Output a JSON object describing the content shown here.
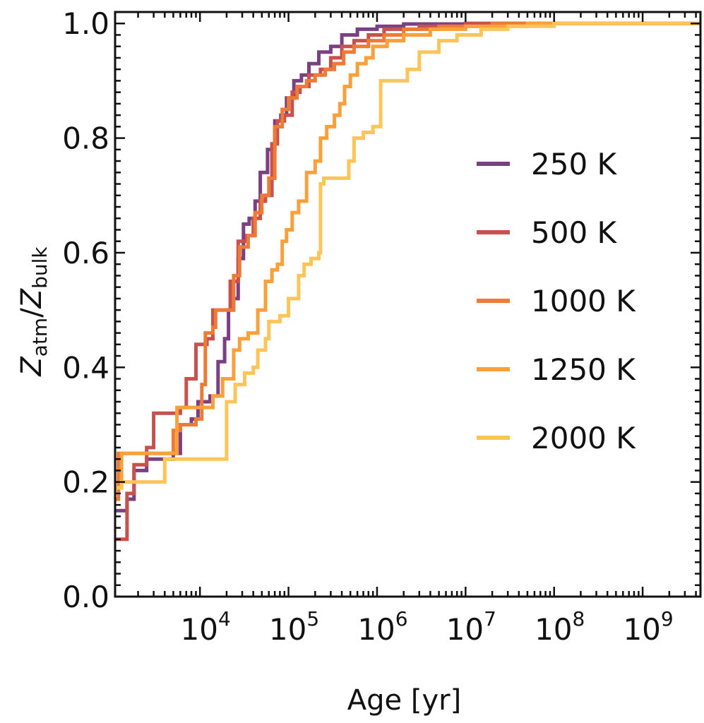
{
  "chart_data": {
    "type": "line",
    "title": "",
    "xlabel": "Age [yr]",
    "ylabel": {
      "base": "Z",
      "sub1": "atm",
      "sep": "/",
      "base2": "Z",
      "sub2": "bulk"
    },
    "x_scale": "log",
    "xlim": [
      1100,
      4500000000
    ],
    "ylim": [
      0,
      1.02
    ],
    "x_ticks": [
      {
        "base": "10",
        "exp": "4",
        "value": 10000
      },
      {
        "base": "10",
        "exp": "5",
        "value": 100000
      },
      {
        "base": "10",
        "exp": "6",
        "value": 1000000
      },
      {
        "base": "10",
        "exp": "7",
        "value": 10000000
      },
      {
        "base": "10",
        "exp": "8",
        "value": 100000000
      },
      {
        "base": "10",
        "exp": "9",
        "value": 1000000000
      }
    ],
    "y_ticks": [
      {
        "label": "0.0",
        "value": 0.0
      },
      {
        "label": "0.2",
        "value": 0.2
      },
      {
        "label": "0.4",
        "value": 0.4
      },
      {
        "label": "0.6",
        "value": 0.6
      },
      {
        "label": "0.8",
        "value": 0.8
      },
      {
        "label": "1.0",
        "value": 1.0
      }
    ],
    "grid": false,
    "legend": "center-right",
    "series": [
      {
        "name": "250 K",
        "color": "#7b3f84",
        "points": [
          [
            1100,
            0.15
          ],
          [
            1500,
            0.17
          ],
          [
            1800,
            0.22
          ],
          [
            2500,
            0.24
          ],
          [
            4000,
            0.24
          ],
          [
            5000,
            0.25
          ],
          [
            6000,
            0.3
          ],
          [
            8000,
            0.31
          ],
          [
            9500,
            0.34
          ],
          [
            13000,
            0.35
          ],
          [
            16000,
            0.41
          ],
          [
            19000,
            0.45
          ],
          [
            21000,
            0.5
          ],
          [
            24000,
            0.52
          ],
          [
            27000,
            0.59
          ],
          [
            31000,
            0.65
          ],
          [
            36000,
            0.66
          ],
          [
            42000,
            0.69
          ],
          [
            48000,
            0.74
          ],
          [
            58000,
            0.78
          ],
          [
            70000,
            0.83
          ],
          [
            82000,
            0.84
          ],
          [
            95000,
            0.87
          ],
          [
            115000,
            0.9
          ],
          [
            140000,
            0.91
          ],
          [
            170000,
            0.93
          ],
          [
            220000,
            0.95
          ],
          [
            300000,
            0.96
          ],
          [
            400000,
            0.98
          ],
          [
            600000,
            0.99
          ],
          [
            1000000,
            0.995
          ],
          [
            2000000,
            0.999
          ],
          [
            10000000,
            1.0
          ],
          [
            4500000000,
            1.0
          ]
        ]
      },
      {
        "name": "500 K",
        "color": "#c7514c",
        "points": [
          [
            1100,
            0.1
          ],
          [
            1400,
            0.1
          ],
          [
            1500,
            0.18
          ],
          [
            1800,
            0.23
          ],
          [
            2500,
            0.26
          ],
          [
            3000,
            0.32
          ],
          [
            4500,
            0.32
          ],
          [
            6000,
            0.33
          ],
          [
            7000,
            0.38
          ],
          [
            9000,
            0.44
          ],
          [
            12000,
            0.45
          ],
          [
            14000,
            0.5
          ],
          [
            19000,
            0.5
          ],
          [
            22000,
            0.55
          ],
          [
            27000,
            0.62
          ],
          [
            34000,
            0.63
          ],
          [
            40000,
            0.66
          ],
          [
            48000,
            0.69
          ],
          [
            55000,
            0.7
          ],
          [
            65000,
            0.79
          ],
          [
            75000,
            0.83
          ],
          [
            90000,
            0.84
          ],
          [
            110000,
            0.88
          ],
          [
            135000,
            0.89
          ],
          [
            170000,
            0.91
          ],
          [
            230000,
            0.92
          ],
          [
            300000,
            0.94
          ],
          [
            400000,
            0.96
          ],
          [
            550000,
            0.97
          ],
          [
            800000,
            0.98
          ],
          [
            1200000,
            0.99
          ],
          [
            3000000,
            0.995
          ],
          [
            10000000,
            1.0
          ],
          [
            4500000000,
            1.0
          ]
        ]
      },
      {
        "name": "1000 K",
        "color": "#ee7b35",
        "points": [
          [
            1100,
            0.17
          ],
          [
            1200,
            0.25
          ],
          [
            2500,
            0.25
          ],
          [
            3800,
            0.25
          ],
          [
            5000,
            0.29
          ],
          [
            6000,
            0.3
          ],
          [
            9000,
            0.31
          ],
          [
            10500,
            0.37
          ],
          [
            11500,
            0.46
          ],
          [
            14000,
            0.47
          ],
          [
            15000,
            0.5
          ],
          [
            20000,
            0.5
          ],
          [
            24000,
            0.56
          ],
          [
            28000,
            0.61
          ],
          [
            35000,
            0.63
          ],
          [
            42000,
            0.67
          ],
          [
            50000,
            0.7
          ],
          [
            60000,
            0.73
          ],
          [
            70000,
            0.82
          ],
          [
            85000,
            0.85
          ],
          [
            100000,
            0.87
          ],
          [
            125000,
            0.89
          ],
          [
            160000,
            0.9
          ],
          [
            200000,
            0.91
          ],
          [
            260000,
            0.92
          ],
          [
            330000,
            0.93
          ],
          [
            420000,
            0.95
          ],
          [
            550000,
            0.96
          ],
          [
            800000,
            0.97
          ],
          [
            1200000,
            0.98
          ],
          [
            2000000,
            0.99
          ],
          [
            5000000,
            0.995
          ],
          [
            20000000,
            1.0
          ],
          [
            4500000000,
            1.0
          ]
        ]
      },
      {
        "name": "1250 K",
        "color": "#f9a03a",
        "points": [
          [
            1100,
            0.19
          ],
          [
            1300,
            0.25
          ],
          [
            4000,
            0.25
          ],
          [
            5500,
            0.33
          ],
          [
            14000,
            0.35
          ],
          [
            18000,
            0.38
          ],
          [
            24000,
            0.43
          ],
          [
            28000,
            0.45
          ],
          [
            35000,
            0.46
          ],
          [
            45000,
            0.5
          ],
          [
            55000,
            0.55
          ],
          [
            65000,
            0.57
          ],
          [
            75000,
            0.58
          ],
          [
            85000,
            0.62
          ],
          [
            95000,
            0.64
          ],
          [
            110000,
            0.67
          ],
          [
            130000,
            0.69
          ],
          [
            160000,
            0.74
          ],
          [
            200000,
            0.76
          ],
          [
            230000,
            0.8
          ],
          [
            270000,
            0.82
          ],
          [
            330000,
            0.84
          ],
          [
            380000,
            0.86
          ],
          [
            430000,
            0.89
          ],
          [
            500000,
            0.91
          ],
          [
            600000,
            0.93
          ],
          [
            750000,
            0.94
          ],
          [
            900000,
            0.96
          ],
          [
            1300000,
            0.97
          ],
          [
            2000000,
            0.98
          ],
          [
            4000000,
            0.99
          ],
          [
            10000000,
            0.995
          ],
          [
            50000000,
            1.0
          ],
          [
            4500000000,
            1.0
          ]
        ]
      },
      {
        "name": "2000 K",
        "color": "#fdc557",
        "points": [
          [
            1100,
            0.19
          ],
          [
            1300,
            0.2
          ],
          [
            3500,
            0.2
          ],
          [
            4000,
            0.24
          ],
          [
            19000,
            0.24
          ],
          [
            20000,
            0.34
          ],
          [
            25000,
            0.37
          ],
          [
            32000,
            0.39
          ],
          [
            40000,
            0.4
          ],
          [
            45000,
            0.43
          ],
          [
            55000,
            0.45
          ],
          [
            60000,
            0.48
          ],
          [
            80000,
            0.49
          ],
          [
            100000,
            0.52
          ],
          [
            130000,
            0.56
          ],
          [
            150000,
            0.58
          ],
          [
            180000,
            0.59
          ],
          [
            220000,
            0.6
          ],
          [
            230000,
            0.72
          ],
          [
            250000,
            0.73
          ],
          [
            400000,
            0.73
          ],
          [
            480000,
            0.76
          ],
          [
            550000,
            0.8
          ],
          [
            700000,
            0.81
          ],
          [
            900000,
            0.82
          ],
          [
            1100000,
            0.9
          ],
          [
            2000000,
            0.9
          ],
          [
            2200000,
            0.92
          ],
          [
            3000000,
            0.95
          ],
          [
            5000000,
            0.97
          ],
          [
            8000000,
            0.98
          ],
          [
            15000000,
            0.99
          ],
          [
            30000000,
            0.995
          ],
          [
            100000000,
            1.0
          ],
          [
            4500000000,
            1.0
          ]
        ]
      }
    ]
  }
}
